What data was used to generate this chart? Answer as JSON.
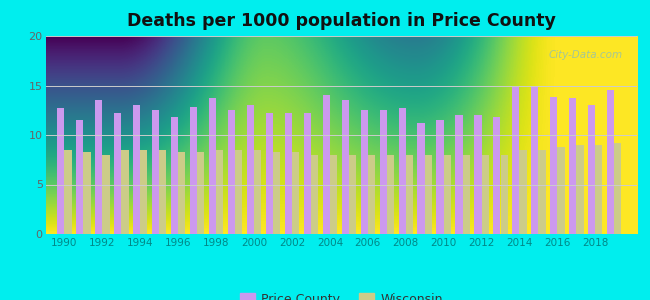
{
  "title": "Deaths per 1000 population in Price County",
  "years": [
    1990,
    1991,
    1992,
    1993,
    1994,
    1995,
    1996,
    1997,
    1998,
    1999,
    2000,
    2001,
    2002,
    2003,
    2004,
    2005,
    2006,
    2007,
    2008,
    2009,
    2010,
    2011,
    2012,
    2013,
    2014,
    2015,
    2016,
    2017,
    2018,
    2019
  ],
  "price_county": [
    12.7,
    11.5,
    13.5,
    12.2,
    13.0,
    12.5,
    11.8,
    12.8,
    13.7,
    12.5,
    13.0,
    12.2,
    12.2,
    12.2,
    14.0,
    13.5,
    12.5,
    12.5,
    12.7,
    11.2,
    11.5,
    12.0,
    12.0,
    11.8,
    14.8,
    15.0,
    13.8,
    13.7,
    13.0,
    14.5
  ],
  "wisconsin": [
    8.5,
    8.3,
    8.0,
    8.5,
    8.5,
    8.5,
    8.3,
    8.3,
    8.5,
    8.5,
    8.5,
    8.3,
    8.3,
    8.0,
    8.0,
    8.0,
    8.0,
    8.0,
    8.0,
    8.0,
    8.0,
    8.0,
    8.0,
    8.0,
    8.5,
    8.5,
    8.8,
    9.0,
    9.0,
    9.2
  ],
  "price_county_color": "#cc99ee",
  "wisconsin_color": "#cccc88",
  "background_color": "#00eeee",
  "ylim": [
    0,
    20
  ],
  "yticks": [
    0,
    5,
    10,
    15,
    20
  ],
  "xticks": [
    1990,
    1992,
    1994,
    1996,
    1998,
    2000,
    2002,
    2004,
    2006,
    2008,
    2010,
    2012,
    2014,
    2016,
    2018
  ],
  "legend_price_county": "Price County",
  "legend_wisconsin": "Wisconsin",
  "bar_width": 0.38
}
